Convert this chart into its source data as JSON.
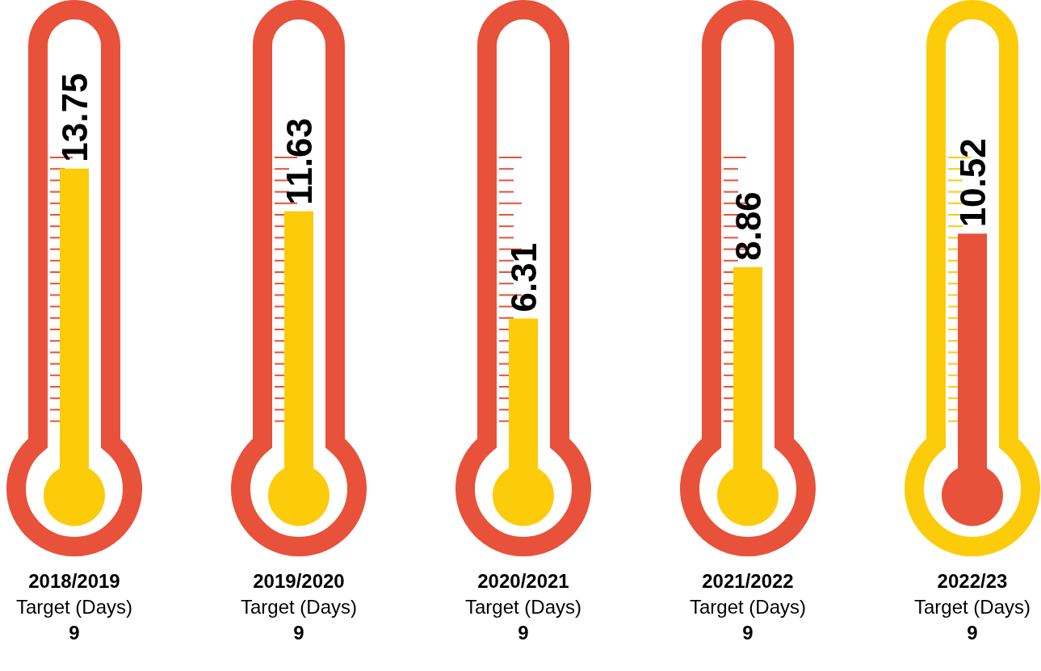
{
  "chart_data": {
    "type": "bar",
    "categories": [
      "2018/2019",
      "2019/2020",
      "2020/2021",
      "2021/2022",
      "2022/23"
    ],
    "values": [
      13.75,
      11.63,
      6.31,
      8.86,
      10.52
    ],
    "colors": [
      "#fccc0a",
      "#fccc0a",
      "#fccc0a",
      "#fccc0a",
      "#e8513a"
    ],
    "data_labels": true,
    "annotations": [
      "Target (Days)",
      "9",
      "Target (Days)",
      "9",
      "Target (Days)",
      "9",
      "Target (Days)",
      "9",
      "Target (Days)",
      "9"
    ]
  }
}
